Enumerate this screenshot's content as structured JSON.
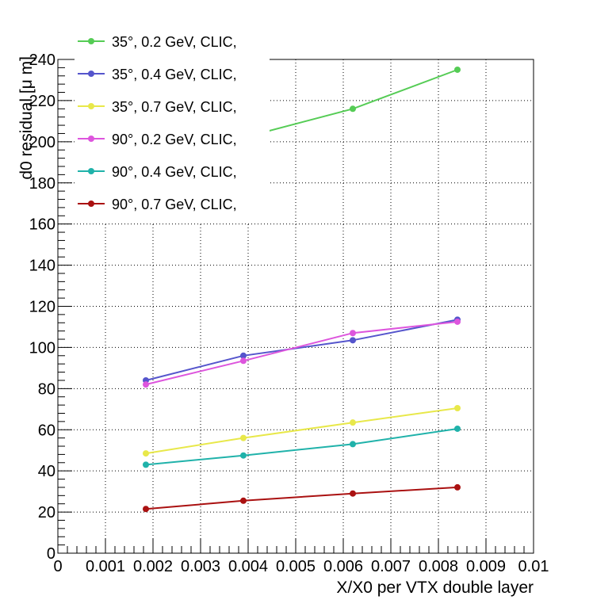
{
  "chart_data": {
    "type": "line",
    "title": "",
    "xlabel": "X/X0 per VTX double layer",
    "ylabel": "d0 residual [μ m]",
    "xlim": [
      0,
      0.01
    ],
    "ylim": [
      0,
      240
    ],
    "x_ticks": [
      "0",
      "0.001",
      "0.002",
      "0.003",
      "0.004",
      "0.005",
      "0.006",
      "0.007",
      "0.008",
      "0.009",
      "0.01"
    ],
    "y_ticks": [
      "0",
      "20",
      "40",
      "60",
      "80",
      "100",
      "120",
      "140",
      "160",
      "180",
      "200",
      "220",
      "240"
    ],
    "grid": true,
    "legend_position": "top-left",
    "x": [
      0.00185,
      0.0039,
      0.0062,
      0.0084
    ],
    "series": [
      {
        "name": "35°, 0.2 GeV, CLIC,",
        "color": "#55cc55",
        "x": [
          0.0039,
          0.0062,
          0.0084
        ],
        "values": [
          202,
          216,
          235
        ]
      },
      {
        "name": "35°, 0.4 GeV, CLIC,",
        "color": "#5555cc",
        "x": [
          0.00185,
          0.0039,
          0.0062,
          0.0084
        ],
        "values": [
          84,
          96,
          103.5,
          113.5
        ]
      },
      {
        "name": "35°, 0.7 GeV, CLIC,",
        "color": "#e8e84a",
        "x": [
          0.00185,
          0.0039,
          0.0062,
          0.0084
        ],
        "values": [
          48.5,
          56,
          63.5,
          70.5
        ]
      },
      {
        "name": "90°, 0.2 GeV, CLIC,",
        "color": "#dd55dd",
        "x": [
          0.00185,
          0.0039,
          0.0062,
          0.0084
        ],
        "values": [
          82,
          93.5,
          107,
          112.5
        ]
      },
      {
        "name": "90°, 0.4 GeV, CLIC,",
        "color": "#20b2aa",
        "x": [
          0.00185,
          0.0039,
          0.0062,
          0.0084
        ],
        "values": [
          43,
          47.5,
          53,
          60.5
        ]
      },
      {
        "name": "90°, 0.7 GeV, CLIC,",
        "color": "#aa1111",
        "x": [
          0.00185,
          0.0039,
          0.0062,
          0.0084
        ],
        "values": [
          21.5,
          25.5,
          29,
          32
        ]
      }
    ]
  }
}
